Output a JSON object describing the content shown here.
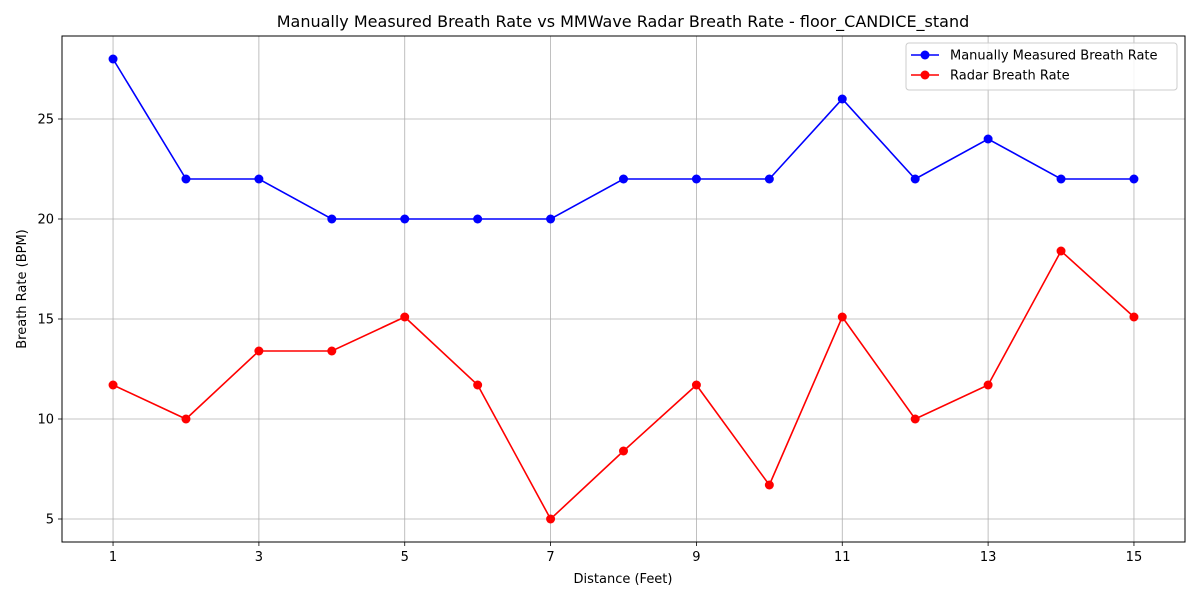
{
  "chart_data": {
    "type": "line",
    "title": "Manually Measured Breath Rate vs MMWave Radar Breath Rate - floor_CANDICE_stand",
    "xlabel": "Distance (Feet)",
    "ylabel": "Breath Rate (BPM)",
    "x": [
      1,
      2,
      3,
      4,
      5,
      6,
      7,
      8,
      9,
      10,
      11,
      12,
      13,
      14,
      15
    ],
    "xlim": [
      0.3,
      15.7
    ],
    "ylim": [
      3.85,
      29.15
    ],
    "xticks": [
      1,
      3,
      5,
      7,
      9,
      11,
      13,
      15
    ],
    "yticks": [
      5,
      10,
      15,
      20,
      25
    ],
    "grid": true,
    "legend_position": "top-right",
    "series": [
      {
        "name": "Manually Measured Breath Rate",
        "color": "#0000ff",
        "values": [
          28,
          22,
          22,
          20,
          20,
          20,
          20,
          22,
          22,
          22,
          26,
          22,
          24,
          22,
          22
        ]
      },
      {
        "name": "Radar Breath Rate",
        "color": "#ff0000",
        "values": [
          11.7,
          10,
          13.4,
          13.4,
          15.1,
          11.7,
          5,
          8.4,
          11.7,
          6.7,
          15.1,
          10,
          11.7,
          18.4,
          15.1
        ]
      }
    ]
  }
}
